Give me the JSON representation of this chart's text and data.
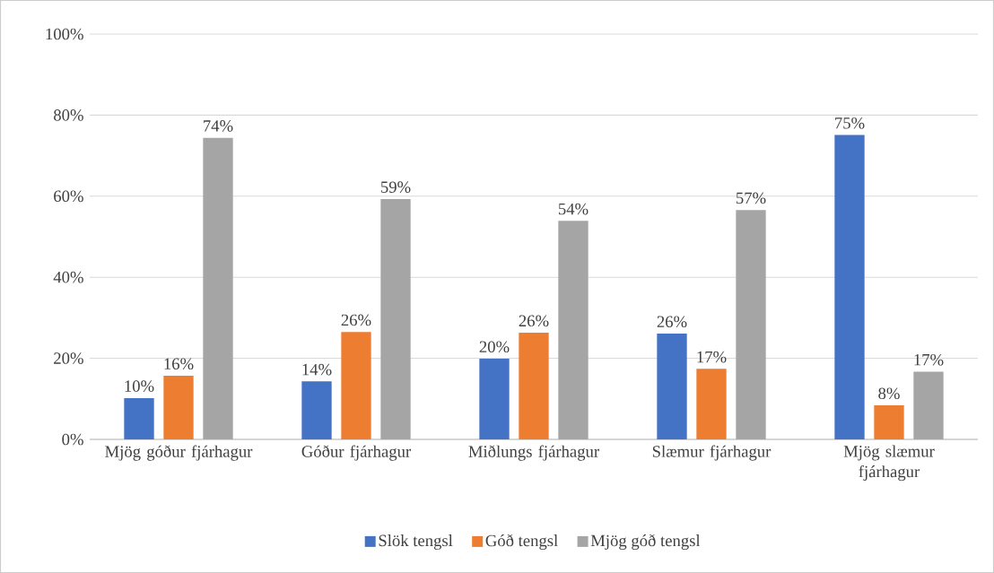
{
  "chart_data": {
    "type": "bar",
    "categories": [
      "Mjög góður fjárhagur",
      "Góður fjárhagur",
      "Miðlungs fjárhagur",
      "Slæmur fjárhagur",
      "Mjög slæmur fjárhagur"
    ],
    "series": [
      {
        "name": "Slök tengsl",
        "color": "#4472c4",
        "values": [
          10.2,
          14.3,
          19.9,
          26.1,
          75.1
        ],
        "value_labels": [
          "10%",
          "14%",
          "20%",
          "26%",
          "75%"
        ]
      },
      {
        "name": "Góð tengsl",
        "color": "#ed7d31",
        "values": [
          15.7,
          26.5,
          26.3,
          17.4,
          8.4
        ],
        "value_labels": [
          "16%",
          "26%",
          "26%",
          "17%",
          "8%"
        ]
      },
      {
        "name": "Mjög góð tengsl",
        "color": "#a5a5a5",
        "values": [
          74.4,
          59.3,
          53.9,
          56.6,
          16.7
        ],
        "value_labels": [
          "74%",
          "59%",
          "54%",
          "57%",
          "17%"
        ]
      }
    ],
    "ylim": [
      0,
      100
    ],
    "yticks": [
      {
        "value": 0,
        "label": "0%"
      },
      {
        "value": 20,
        "label": "20%"
      },
      {
        "value": 40,
        "label": "40%"
      },
      {
        "value": 60,
        "label": "60%"
      },
      {
        "value": 80,
        "label": "80%"
      },
      {
        "value": 100,
        "label": "100%"
      }
    ],
    "grid": "y",
    "legend": "bottom"
  }
}
